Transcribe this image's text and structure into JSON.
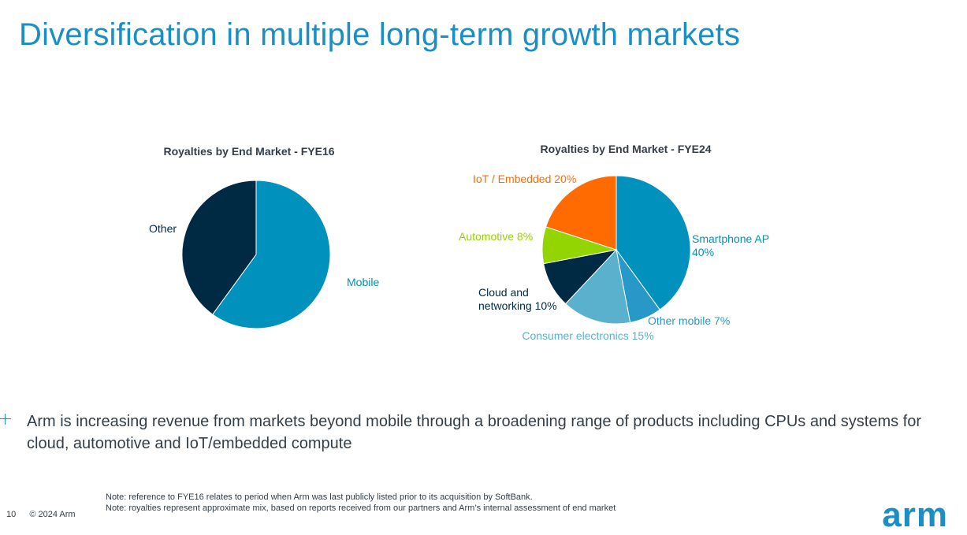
{
  "slide": {
    "title": "Diversification in multiple long-term growth markets",
    "bullet": "Arm is increasing revenue from markets beyond mobile through a broadening range of products including CPUs and systems for cloud, automotive and IoT/embedded compute",
    "notes": [
      "Note: reference to FYE16 relates to period when Arm was last publicly listed prior to its acquisition by SoftBank.",
      "Note: royalties represent approximate mix, based on reports received from our partners and Arm’s internal assessment of end market"
    ],
    "page_number": "10",
    "copyright": "© 2024 Arm",
    "logo_text": "arm",
    "accent_color": "#1b8fc3"
  },
  "chart_data": [
    {
      "type": "pie",
      "title": "Royalties by End Market - FYE16",
      "labels": [
        "Mobile",
        "Other"
      ],
      "values": [
        60,
        40
      ],
      "colors": [
        "#0091bd",
        "#002a44"
      ],
      "label_colors": [
        "#0091bd",
        "#002a44"
      ]
    },
    {
      "type": "pie",
      "title": "Royalties by End Market - FYE24",
      "labels": [
        "Smartphone AP 40%",
        "Other mobile 7%",
        "Consumer electronics 15%",
        "Cloud and networking 10%",
        "Automotive 8%",
        "IoT / Embedded 20%"
      ],
      "values": [
        40,
        7,
        15,
        10,
        8,
        20
      ],
      "colors": [
        "#0091bd",
        "#2798c8",
        "#5ab1cd",
        "#002a44",
        "#93d500",
        "#ff6b00"
      ],
      "label_colors": [
        "#0091bd",
        "#2798c8",
        "#5ab1cd",
        "#002a44",
        "#93d500",
        "#ff6b00"
      ]
    }
  ]
}
